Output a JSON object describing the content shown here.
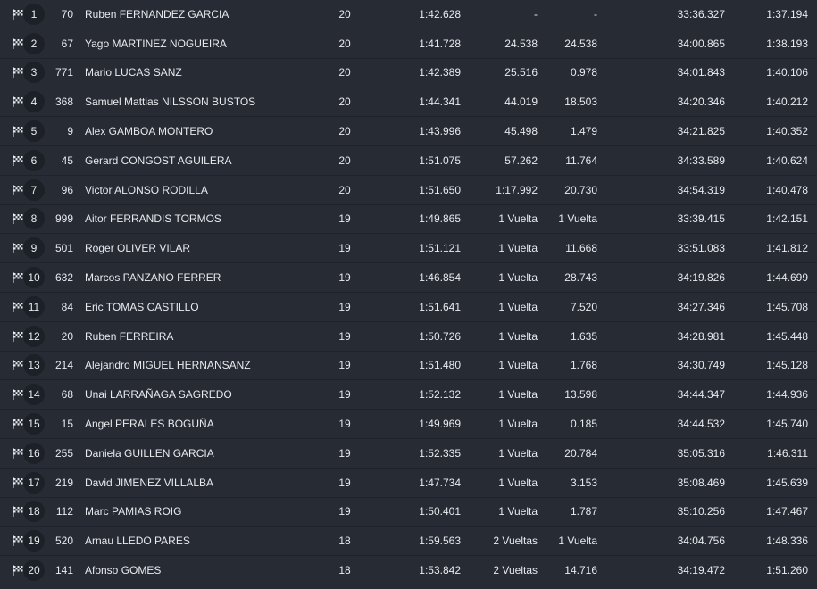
{
  "columns": [
    "pos",
    "number",
    "name",
    "laps",
    "best_lap",
    "gap",
    "interval",
    "total_time",
    "last_lap"
  ],
  "rows": [
    {
      "pos": "1",
      "number": "70",
      "name": "Ruben FERNANDEZ GARCIA",
      "laps": "20",
      "best_lap": "1:42.628",
      "gap": "-",
      "interval": "-",
      "total_time": "33:36.327",
      "last_lap": "1:37.194"
    },
    {
      "pos": "2",
      "number": "67",
      "name": "Yago MARTINEZ NOGUEIRA",
      "laps": "20",
      "best_lap": "1:41.728",
      "gap": "24.538",
      "interval": "24.538",
      "total_time": "34:00.865",
      "last_lap": "1:38.193"
    },
    {
      "pos": "3",
      "number": "771",
      "name": "Mario LUCAS SANZ",
      "laps": "20",
      "best_lap": "1:42.389",
      "gap": "25.516",
      "interval": "0.978",
      "total_time": "34:01.843",
      "last_lap": "1:40.106"
    },
    {
      "pos": "4",
      "number": "368",
      "name": "Samuel Mattias NILSSON BUSTOS",
      "laps": "20",
      "best_lap": "1:44.341",
      "gap": "44.019",
      "interval": "18.503",
      "total_time": "34:20.346",
      "last_lap": "1:40.212"
    },
    {
      "pos": "5",
      "number": "9",
      "name": "Alex GAMBOA MONTERO",
      "laps": "20",
      "best_lap": "1:43.996",
      "gap": "45.498",
      "interval": "1.479",
      "total_time": "34:21.825",
      "last_lap": "1:40.352"
    },
    {
      "pos": "6",
      "number": "45",
      "name": "Gerard CONGOST AGUILERA",
      "laps": "20",
      "best_lap": "1:51.075",
      "gap": "57.262",
      "interval": "11.764",
      "total_time": "34:33.589",
      "last_lap": "1:40.624"
    },
    {
      "pos": "7",
      "number": "96",
      "name": "Victor ALONSO RODILLA",
      "laps": "20",
      "best_lap": "1:51.650",
      "gap": "1:17.992",
      "interval": "20.730",
      "total_time": "34:54.319",
      "last_lap": "1:40.478"
    },
    {
      "pos": "8",
      "number": "999",
      "name": "Aitor FERRANDIS TORMOS",
      "laps": "19",
      "best_lap": "1:49.865",
      "gap": "1 Vuelta",
      "interval": "1 Vuelta",
      "total_time": "33:39.415",
      "last_lap": "1:42.151"
    },
    {
      "pos": "9",
      "number": "501",
      "name": "Roger OLIVER VILAR",
      "laps": "19",
      "best_lap": "1:51.121",
      "gap": "1 Vuelta",
      "interval": "11.668",
      "total_time": "33:51.083",
      "last_lap": "1:41.812"
    },
    {
      "pos": "10",
      "number": "632",
      "name": "Marcos PANZANO FERRER",
      "laps": "19",
      "best_lap": "1:46.854",
      "gap": "1 Vuelta",
      "interval": "28.743",
      "total_time": "34:19.826",
      "last_lap": "1:44.699"
    },
    {
      "pos": "11",
      "number": "84",
      "name": "Eric TOMAS CASTILLO",
      "laps": "19",
      "best_lap": "1:51.641",
      "gap": "1 Vuelta",
      "interval": "7.520",
      "total_time": "34:27.346",
      "last_lap": "1:45.708"
    },
    {
      "pos": "12",
      "number": "20",
      "name": "Ruben FERREIRA",
      "laps": "19",
      "best_lap": "1:50.726",
      "gap": "1 Vuelta",
      "interval": "1.635",
      "total_time": "34:28.981",
      "last_lap": "1:45.448"
    },
    {
      "pos": "13",
      "number": "214",
      "name": "Alejandro MIGUEL HERNANSANZ",
      "laps": "19",
      "best_lap": "1:51.480",
      "gap": "1 Vuelta",
      "interval": "1.768",
      "total_time": "34:30.749",
      "last_lap": "1:45.128"
    },
    {
      "pos": "14",
      "number": "68",
      "name": "Unai LARRAÑAGA SAGREDO",
      "laps": "19",
      "best_lap": "1:52.132",
      "gap": "1 Vuelta",
      "interval": "13.598",
      "total_time": "34:44.347",
      "last_lap": "1:44.936"
    },
    {
      "pos": "15",
      "number": "15",
      "name": "Angel PERALES BOGUÑA",
      "laps": "19",
      "best_lap": "1:49.969",
      "gap": "1 Vuelta",
      "interval": "0.185",
      "total_time": "34:44.532",
      "last_lap": "1:45.740"
    },
    {
      "pos": "16",
      "number": "255",
      "name": "Daniela GUILLEN GARCIA",
      "laps": "19",
      "best_lap": "1:52.335",
      "gap": "1 Vuelta",
      "interval": "20.784",
      "total_time": "35:05.316",
      "last_lap": "1:46.311"
    },
    {
      "pos": "17",
      "number": "219",
      "name": "David JIMENEZ VILLALBA",
      "laps": "19",
      "best_lap": "1:47.734",
      "gap": "1 Vuelta",
      "interval": "3.153",
      "total_time": "35:08.469",
      "last_lap": "1:45.639"
    },
    {
      "pos": "18",
      "number": "112",
      "name": "Marc PAMIAS ROIG",
      "laps": "19",
      "best_lap": "1:50.401",
      "gap": "1 Vuelta",
      "interval": "1.787",
      "total_time": "35:10.256",
      "last_lap": "1:47.467"
    },
    {
      "pos": "19",
      "number": "520",
      "name": "Arnau LLEDO PARES",
      "laps": "18",
      "best_lap": "1:59.563",
      "gap": "2 Vueltas",
      "interval": "1 Vuelta",
      "total_time": "34:04.756",
      "last_lap": "1:48.336"
    },
    {
      "pos": "20",
      "number": "141",
      "name": "Afonso GOMES",
      "laps": "18",
      "best_lap": "1:53.842",
      "gap": "2 Vueltas",
      "interval": "14.716",
      "total_time": "34:19.472",
      "last_lap": "1:51.260"
    }
  ]
}
